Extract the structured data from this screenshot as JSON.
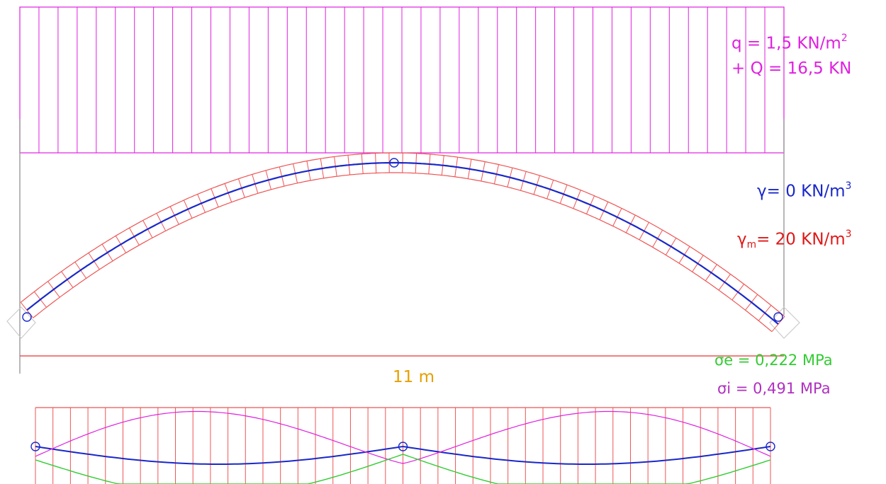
{
  "colors": {
    "load": "#e020e0",
    "arch": "#ee5555",
    "thrust": "#1a28c8",
    "span": "#e6a000",
    "sigma_e": "#33cc33",
    "sigma_i": "#b030c0",
    "support": "#999999"
  },
  "labels": {
    "q_text": "q = 1,5 KN/m",
    "q_exp": "2",
    "Q_text": "+ Q = 16,5 KN",
    "gamma_text": "γ= 0 KN/m",
    "gamma_exp": "3",
    "gamma_m_sym": "γ",
    "gamma_m_sub": "m",
    "gamma_m_text": "= 20 KN/m",
    "gamma_m_exp": "3",
    "span": "11 m",
    "sigma_e": "σe = 0,222 MPa",
    "sigma_i": "σi = 0,491 MPa"
  },
  "diagram": {
    "q_kn_per_m2": 1.5,
    "Q_kn": 16.5,
    "gamma_kn_per_m3": 0,
    "gamma_m_kn_per_m3": 20,
    "span_m": 11,
    "sigma_e_mpa": 0.222,
    "sigma_i_mpa": 0.491,
    "hinges": [
      "left-support",
      "crown",
      "right-support"
    ]
  }
}
